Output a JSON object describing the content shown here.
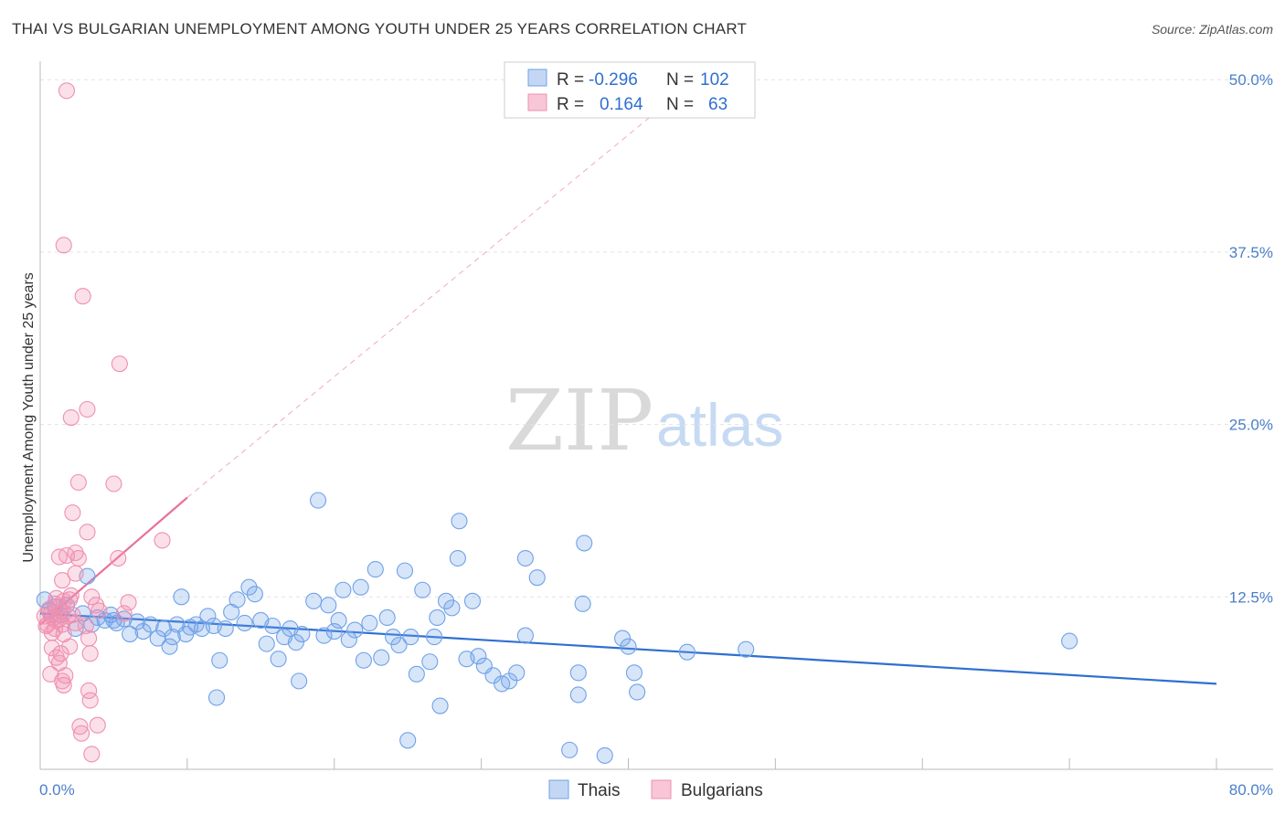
{
  "title": "THAI VS BULGARIAN UNEMPLOYMENT AMONG YOUTH UNDER 25 YEARS CORRELATION CHART",
  "source": "Source: ZipAtlas.com",
  "watermark": {
    "zip": "ZIP",
    "atlas": "atlas"
  },
  "chart_data": {
    "type": "scatter",
    "xlabel": "",
    "ylabel": "Unemployment Among Youth under 25 years",
    "xlim": [
      0,
      80
    ],
    "ylim": [
      0,
      52
    ],
    "x_tick_labels": {
      "min": "0.0%",
      "max": "80.0%"
    },
    "y_ticks": [
      12.5,
      25.0,
      37.5,
      50.0
    ],
    "y_tick_labels": [
      "12.5%",
      "25.0%",
      "37.5%",
      "50.0%"
    ],
    "legend": [
      {
        "name": "Thais",
        "r_label": "R =",
        "r": "-0.296",
        "n_label": "N =",
        "n": "102",
        "color": "#6fa2e8"
      },
      {
        "name": "Bulgarians",
        "r_label": "R =",
        "r": "0.164",
        "n_label": "N =",
        "n": "63",
        "color": "#ef8fb0"
      }
    ],
    "series": [
      {
        "name": "Thais",
        "color": "#6fa2e8",
        "trend": {
          "x0": 0,
          "y0": 11.3,
          "x1": 80,
          "y1": 6.2,
          "color": "#2f6fd1"
        },
        "points": [
          [
            0.3,
            12.3
          ],
          [
            0.6,
            11.5
          ],
          [
            1.0,
            11.8
          ],
          [
            1.4,
            11.2
          ],
          [
            1.8,
            11.9
          ],
          [
            2.4,
            10.2
          ],
          [
            2.9,
            11.3
          ],
          [
            3.2,
            14.0
          ],
          [
            3.5,
            10.5
          ],
          [
            3.9,
            11.0
          ],
          [
            4.4,
            10.8
          ],
          [
            4.8,
            11.2
          ],
          [
            5.2,
            10.6
          ],
          [
            5.7,
            10.9
          ],
          [
            6.1,
            9.8
          ],
          [
            6.6,
            10.7
          ],
          [
            7.0,
            10.0
          ],
          [
            7.5,
            10.5
          ],
          [
            8.0,
            9.5
          ],
          [
            8.4,
            10.2
          ],
          [
            8.8,
            8.9
          ],
          [
            9.3,
            10.5
          ],
          [
            9.6,
            12.5
          ],
          [
            9.9,
            9.8
          ],
          [
            10.2,
            10.3
          ],
          [
            10.6,
            10.5
          ],
          [
            11.0,
            10.2
          ],
          [
            11.4,
            11.1
          ],
          [
            11.8,
            10.4
          ],
          [
            12.2,
            7.9
          ],
          [
            12.0,
            5.2
          ],
          [
            12.6,
            10.2
          ],
          [
            13.0,
            11.4
          ],
          [
            13.4,
            12.3
          ],
          [
            13.9,
            10.6
          ],
          [
            14.2,
            13.2
          ],
          [
            14.6,
            12.7
          ],
          [
            15.0,
            10.8
          ],
          [
            15.4,
            9.1
          ],
          [
            15.8,
            10.4
          ],
          [
            16.2,
            8.0
          ],
          [
            16.6,
            9.6
          ],
          [
            17.0,
            10.2
          ],
          [
            17.4,
            9.2
          ],
          [
            17.8,
            9.8
          ],
          [
            17.6,
            6.4
          ],
          [
            18.6,
            12.2
          ],
          [
            18.9,
            19.5
          ],
          [
            19.3,
            9.7
          ],
          [
            19.6,
            11.9
          ],
          [
            20.0,
            10.0
          ],
          [
            20.3,
            10.8
          ],
          [
            20.6,
            13.0
          ],
          [
            21.0,
            9.4
          ],
          [
            21.4,
            10.1
          ],
          [
            21.8,
            13.2
          ],
          [
            22.0,
            7.9
          ],
          [
            22.4,
            10.6
          ],
          [
            22.8,
            14.5
          ],
          [
            23.2,
            8.1
          ],
          [
            23.6,
            11.0
          ],
          [
            24.0,
            9.6
          ],
          [
            24.4,
            9.0
          ],
          [
            24.8,
            14.4
          ],
          [
            25.2,
            9.6
          ],
          [
            25.6,
            6.9
          ],
          [
            26.0,
            13.0
          ],
          [
            26.5,
            7.8
          ],
          [
            26.8,
            9.6
          ],
          [
            27.2,
            4.6
          ],
          [
            27.0,
            11.0
          ],
          [
            27.6,
            12.2
          ],
          [
            28.0,
            11.7
          ],
          [
            28.4,
            15.3
          ],
          [
            29.0,
            8.0
          ],
          [
            29.4,
            12.2
          ],
          [
            29.8,
            8.2
          ],
          [
            30.2,
            7.5
          ],
          [
            30.8,
            6.8
          ],
          [
            31.4,
            6.2
          ],
          [
            31.9,
            6.4
          ],
          [
            32.4,
            7.0
          ],
          [
            33.0,
            9.7
          ],
          [
            25.0,
            2.1
          ],
          [
            36.0,
            1.4
          ],
          [
            36.6,
            5.4
          ],
          [
            37.0,
            16.4
          ],
          [
            38.4,
            1.0
          ],
          [
            36.6,
            7.0
          ],
          [
            36.9,
            12.0
          ],
          [
            33.8,
            13.9
          ],
          [
            40.4,
            7.0
          ],
          [
            40.6,
            5.6
          ],
          [
            40.0,
            8.9
          ],
          [
            39.6,
            9.5
          ],
          [
            28.5,
            18.0
          ],
          [
            33.0,
            15.3
          ],
          [
            44.0,
            8.5
          ],
          [
            48.0,
            8.7
          ],
          [
            70.0,
            9.3
          ],
          [
            9.0,
            9.6
          ],
          [
            5.0,
            10.8
          ]
        ]
      },
      {
        "name": "Bulgarians",
        "color": "#ef8fb0",
        "trend": {
          "x0": 0,
          "y0": 10.5,
          "x1": 10,
          "y1": 19.7,
          "x_ext": 44,
          "y_ext": 49.5,
          "color": "#e8719a"
        },
        "points": [
          [
            1.8,
            49.2
          ],
          [
            1.6,
            38.0
          ],
          [
            2.9,
            34.3
          ],
          [
            5.4,
            29.4
          ],
          [
            3.2,
            26.1
          ],
          [
            2.1,
            25.5
          ],
          [
            5.0,
            20.7
          ],
          [
            2.6,
            20.8
          ],
          [
            2.2,
            18.6
          ],
          [
            3.2,
            17.2
          ],
          [
            8.3,
            16.6
          ],
          [
            1.3,
            15.4
          ],
          [
            1.8,
            15.5
          ],
          [
            2.4,
            15.7
          ],
          [
            2.6,
            15.3
          ],
          [
            5.3,
            15.3
          ],
          [
            2.4,
            14.2
          ],
          [
            1.5,
            13.7
          ],
          [
            3.5,
            12.5
          ],
          [
            2.1,
            12.6
          ],
          [
            1.1,
            12.4
          ],
          [
            1.6,
            12.2
          ],
          [
            1.0,
            12.0
          ],
          [
            1.3,
            11.8
          ],
          [
            2.0,
            12.3
          ],
          [
            0.6,
            11.6
          ],
          [
            1.5,
            11.4
          ],
          [
            0.9,
            11.0
          ],
          [
            1.1,
            10.8
          ],
          [
            0.5,
            10.5
          ],
          [
            0.7,
            11.2
          ],
          [
            1.9,
            11.1
          ],
          [
            1.3,
            10.9
          ],
          [
            0.4,
            10.4
          ],
          [
            1.5,
            10.5
          ],
          [
            0.3,
            11.1
          ],
          [
            2.2,
            11.2
          ],
          [
            3.8,
            11.9
          ],
          [
            6.0,
            12.1
          ],
          [
            5.7,
            11.3
          ],
          [
            4.0,
            11.5
          ],
          [
            1.0,
            10.2
          ],
          [
            2.4,
            10.6
          ],
          [
            3.1,
            10.4
          ],
          [
            0.8,
            9.9
          ],
          [
            3.3,
            9.5
          ],
          [
            1.4,
            8.4
          ],
          [
            2.0,
            8.9
          ],
          [
            1.6,
            9.8
          ],
          [
            0.8,
            8.8
          ],
          [
            1.1,
            8.1
          ],
          [
            1.3,
            7.7
          ],
          [
            3.4,
            8.4
          ],
          [
            0.7,
            6.9
          ],
          [
            1.5,
            6.4
          ],
          [
            1.6,
            6.1
          ],
          [
            3.3,
            5.7
          ],
          [
            3.4,
            5.0
          ],
          [
            2.7,
            3.1
          ],
          [
            3.9,
            3.2
          ],
          [
            2.8,
            2.6
          ],
          [
            3.5,
            1.1
          ],
          [
            1.7,
            6.8
          ]
        ]
      }
    ]
  }
}
